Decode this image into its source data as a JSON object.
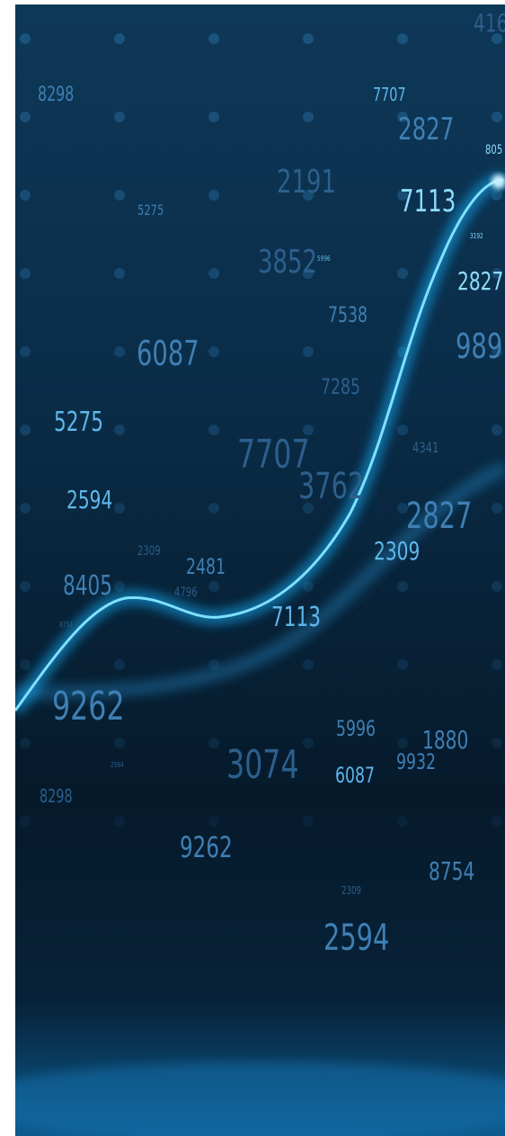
{
  "numbers": [
    "416",
    "8298",
    "7707",
    "2827",
    "805",
    "2191",
    "7113",
    "5275",
    "3852",
    "5996",
    "3192",
    "2827",
    "7538",
    "6087",
    "989",
    "7285",
    "5275",
    "4341",
    "7707",
    "3762",
    "2594",
    "2827",
    "2309",
    "2309",
    "2481",
    "8405",
    "4796",
    "7113",
    "8754",
    "9262",
    "5996",
    "1880",
    "9932",
    "3074",
    "2594",
    "6087",
    "8298",
    "9262",
    "8754",
    "2309",
    "2594"
  ]
}
